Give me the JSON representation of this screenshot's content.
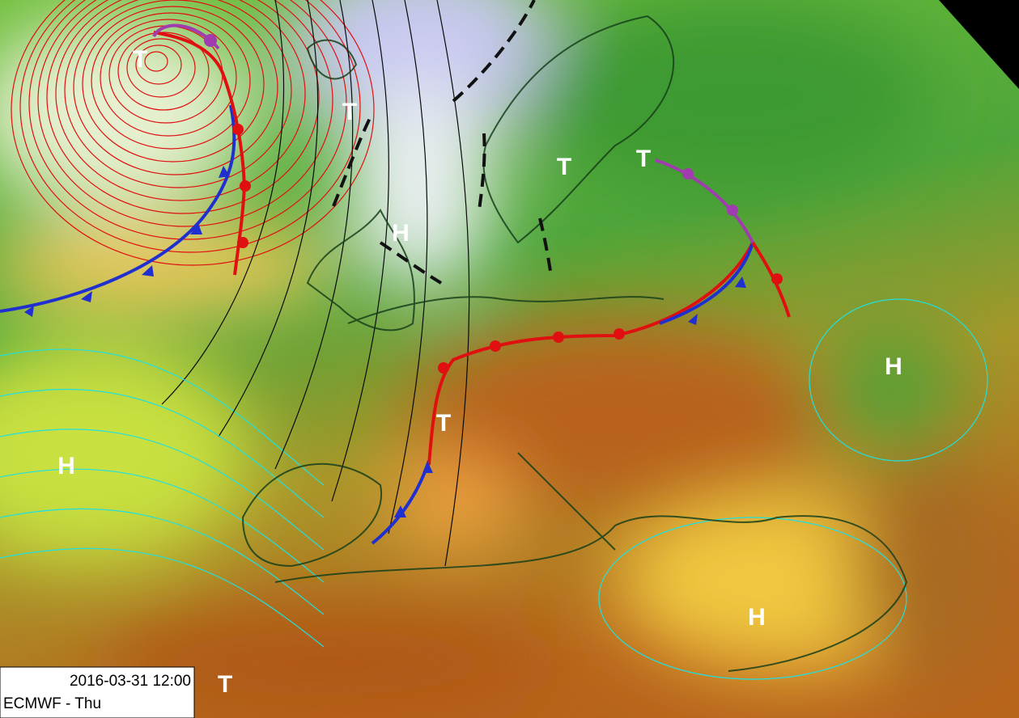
{
  "map": {
    "labels": [
      "T",
      "T",
      "H",
      "T",
      "T",
      "H",
      "T",
      "H",
      "H",
      "T"
    ],
    "caption": {
      "datetime": "2016-03-31 12:00",
      "model": "ECMWF - Thu"
    }
  }
}
